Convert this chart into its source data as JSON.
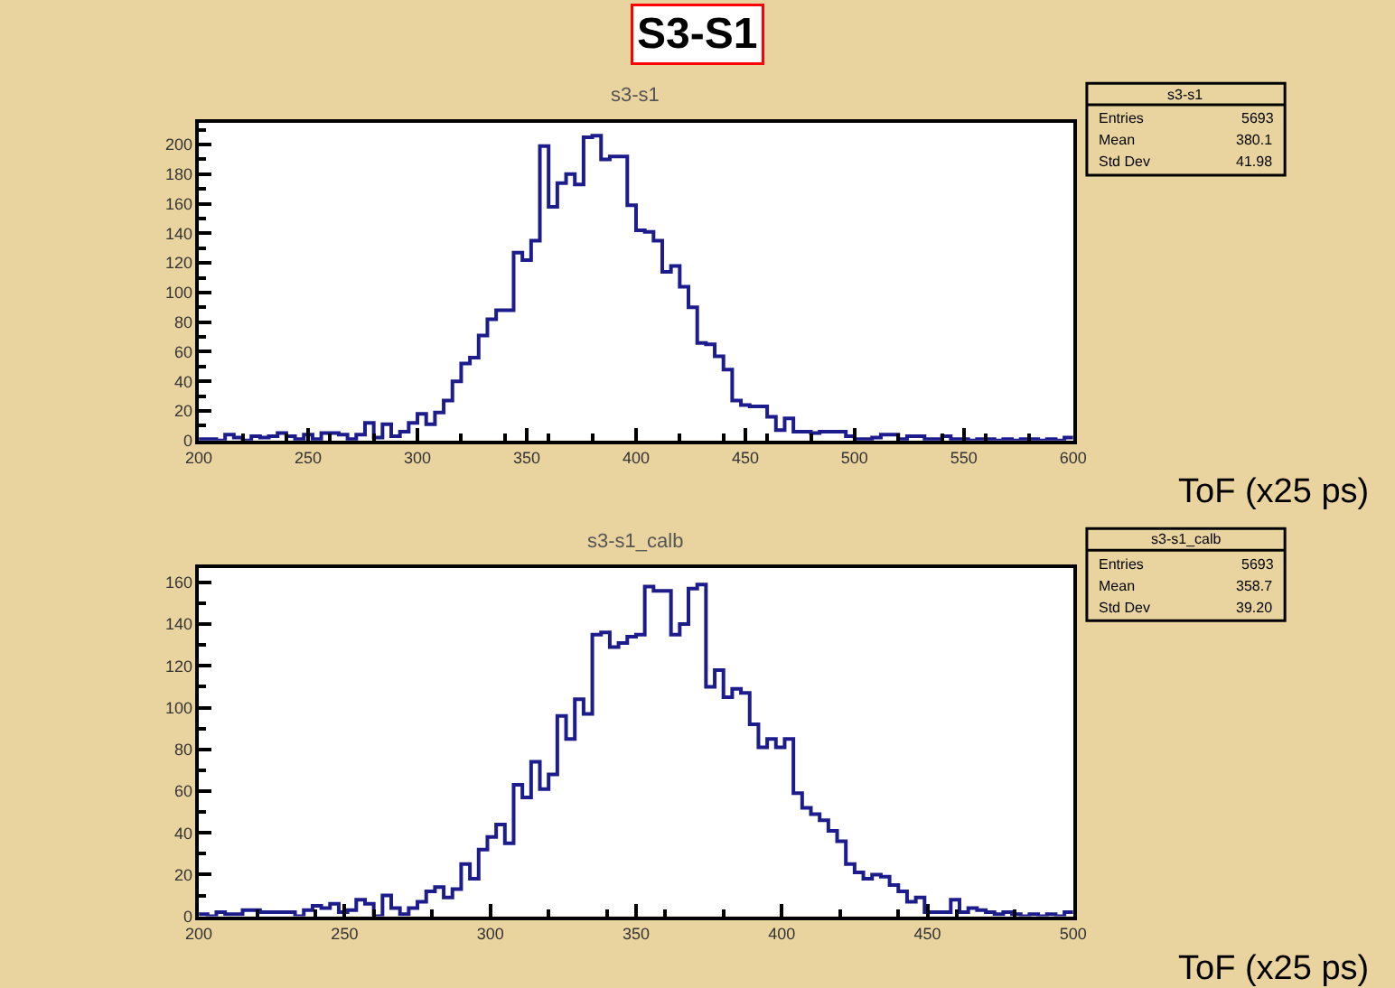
{
  "chart_data": [
    {
      "type": "histogram",
      "title": "s3-s1",
      "xlabel": "ToF (x25 ps)",
      "color": "#1c1c8c",
      "bins": [
        200,
        204,
        208,
        212,
        216,
        220,
        224,
        228,
        232,
        236,
        240,
        244,
        248,
        252,
        256,
        260,
        264,
        268,
        272,
        276,
        280,
        284,
        288,
        292,
        296,
        300,
        304,
        308,
        312,
        316,
        320,
        324,
        328,
        332,
        336,
        340,
        344,
        348,
        352,
        356,
        360,
        364,
        368,
        372,
        376,
        380,
        384,
        388,
        392,
        396,
        400,
        404,
        408,
        412,
        416,
        420,
        424,
        428,
        432,
        436,
        440,
        444,
        448,
        452,
        456,
        460,
        464,
        468,
        472,
        476,
        480,
        484,
        488,
        492,
        496,
        500,
        504,
        508,
        512,
        516,
        520,
        524,
        528,
        532,
        536,
        540,
        544,
        548,
        552,
        556,
        560,
        564,
        568,
        572,
        576,
        580,
        584,
        588,
        592,
        596,
        600
      ],
      "values": [
        1,
        1,
        0,
        4,
        2,
        0,
        3,
        2,
        3,
        5,
        3,
        1,
        4,
        1,
        5,
        5,
        4,
        1,
        4,
        12,
        2,
        11,
        3,
        6,
        12,
        18,
        11,
        19,
        27,
        40,
        52,
        56,
        71,
        82,
        88,
        88,
        127,
        122,
        135,
        199,
        158,
        174,
        180,
        173,
        205,
        206,
        190,
        192,
        192,
        159,
        142,
        141,
        135,
        114,
        118,
        104,
        90,
        66,
        65,
        57,
        48,
        27,
        24,
        23,
        23,
        16,
        7,
        15,
        6,
        6,
        5,
        6,
        6,
        6,
        3,
        1,
        1,
        2,
        4,
        4,
        1,
        3,
        3,
        1,
        1,
        3,
        1,
        1,
        0,
        1,
        1,
        0,
        1,
        0,
        1,
        1,
        0,
        1,
        0,
        2
      ],
      "xlim": [
        200,
        600
      ],
      "ylim": [
        0,
        215
      ],
      "xticks": [
        200,
        250,
        300,
        350,
        400,
        450,
        500,
        550,
        600
      ],
      "yticks": [
        0,
        20,
        40,
        60,
        80,
        100,
        120,
        140,
        160,
        180,
        200
      ],
      "grid": false,
      "annotations": [
        "S3-S1",
        "Entries\t5693",
        "Mean\t380.1",
        "Std Dev\t41.98"
      ]
    },
    {
      "type": "histogram",
      "title": "s3-s1_calb",
      "xlabel": "ToF (x25 ps)",
      "color": "#1c1c8c",
      "bins": [
        200,
        203,
        206,
        209,
        212,
        215,
        218,
        221,
        224,
        227,
        230,
        233,
        236,
        239,
        242,
        245,
        248,
        251,
        254,
        257,
        260,
        263,
        266,
        269,
        272,
        275,
        278,
        281,
        284,
        287,
        290,
        293,
        296,
        299,
        302,
        305,
        308,
        311,
        314,
        317,
        320,
        323,
        326,
        329,
        332,
        335,
        338,
        341,
        344,
        347,
        350,
        353,
        356,
        359,
        362,
        365,
        368,
        371,
        374,
        377,
        380,
        383,
        386,
        389,
        392,
        395,
        398,
        401,
        404,
        407,
        410,
        413,
        416,
        419,
        422,
        425,
        428,
        431,
        434,
        437,
        440,
        443,
        446,
        449,
        452,
        455,
        458,
        461,
        464,
        467,
        470,
        473,
        476,
        479,
        482,
        485,
        488,
        491,
        494,
        497,
        500
      ],
      "values": [
        1,
        0,
        2,
        1,
        1,
        3,
        3,
        2,
        2,
        2,
        2,
        0,
        3,
        5,
        4,
        6,
        2,
        3,
        8,
        6,
        0,
        10,
        4,
        1,
        4,
        7,
        12,
        14,
        9,
        13,
        25,
        18,
        32,
        38,
        44,
        35,
        63,
        57,
        74,
        61,
        68,
        96,
        85,
        104,
        97,
        135,
        136,
        129,
        131,
        134,
        135,
        158,
        156,
        156,
        135,
        140,
        157,
        159,
        110,
        118,
        105,
        109,
        107,
        92,
        81,
        85,
        81,
        85,
        59,
        52,
        49,
        46,
        41,
        36,
        25,
        21,
        18,
        20,
        19,
        15,
        12,
        7,
        9,
        2,
        2,
        2,
        8,
        2,
        4,
        3,
        2,
        1,
        2,
        1,
        0,
        1,
        0,
        1,
        0,
        2
      ],
      "xlim": [
        200,
        500
      ],
      "ylim": [
        0,
        167
      ],
      "xticks": [
        200,
        250,
        300,
        350,
        400,
        450,
        500
      ],
      "yticks": [
        0,
        20,
        40,
        60,
        80,
        100,
        120,
        140,
        160
      ],
      "grid": false,
      "annotations": [
        "Entries\t5693",
        "Mean\t358.7",
        "Std Dev\t39.20"
      ]
    }
  ]
}
